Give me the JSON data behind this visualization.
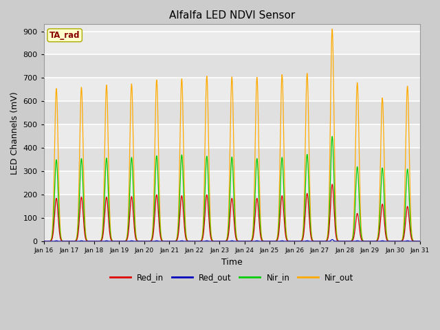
{
  "title": "Alfalfa LED NDVI Sensor",
  "xlabel": "Time",
  "ylabel": "LED Channels (mV)",
  "ylim": [
    0,
    930
  ],
  "yticks": [
    0,
    100,
    200,
    300,
    400,
    500,
    600,
    700,
    800,
    900
  ],
  "fig_bg_color": "#cccccc",
  "plot_bg_color": "#e8e8e8",
  "grid_color": "#d8d8d8",
  "colors": {
    "Red_in": "#dd0000",
    "Red_out": "#0000bb",
    "Nir_in": "#00cc00",
    "Nir_out": "#ffaa00"
  },
  "ta_rad_label": "TA_rad",
  "ta_rad_box_color": "#ffffcc",
  "ta_rad_text_color": "#880000",
  "day_labels": [
    "Jan 16",
    "Jan 17",
    "Jan 18",
    "Jan 19",
    "Jan 20",
    "Jan 21",
    "Jan 22",
    "Jan 23",
    "Jan 24",
    "Jan 25",
    "Jan 26",
    "Jan 27",
    "Jan 28",
    "Jan 29",
    "Jan 30",
    "Jan 31"
  ],
  "spike_centers": [
    0.5,
    1.5,
    2.5,
    3.5,
    4.5,
    5.5,
    6.5,
    7.5,
    8.5,
    9.5,
    10.5,
    11.5,
    12.5,
    13.5,
    14.5
  ],
  "spike_peaks_nir_out": [
    655,
    660,
    670,
    675,
    692,
    697,
    708,
    705,
    703,
    715,
    720,
    910,
    680,
    615,
    665
  ],
  "spike_peaks_nir_in": [
    350,
    355,
    357,
    360,
    367,
    371,
    365,
    362,
    355,
    360,
    373,
    450,
    320,
    315,
    310
  ],
  "spike_peaks_red_in": [
    185,
    190,
    190,
    192,
    200,
    196,
    200,
    185,
    185,
    196,
    206,
    245,
    120,
    160,
    150
  ],
  "spike_peaks_red_out": [
    3,
    3,
    3,
    3,
    3,
    3,
    3,
    3,
    3,
    3,
    3,
    8,
    3,
    3,
    3
  ],
  "spike_sigma": 0.07,
  "baseline": 1,
  "n_pts": 3000
}
